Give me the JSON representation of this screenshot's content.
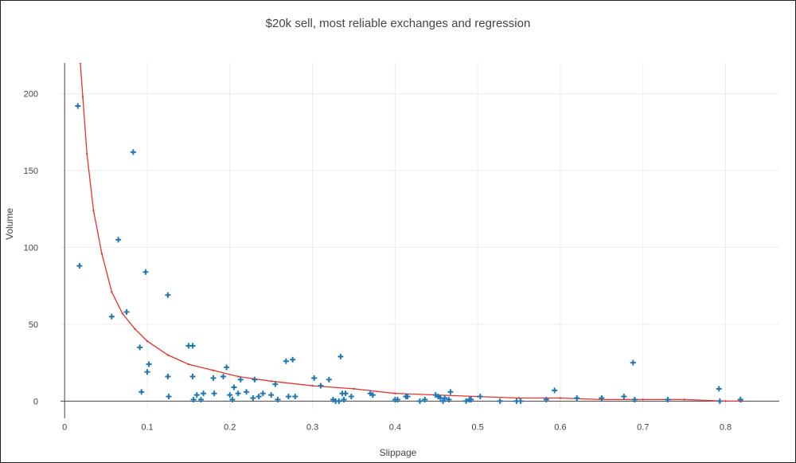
{
  "chart_data": {
    "type": "scatter",
    "title": "$20k sell, most reliable exchanges and regression",
    "xlabel": "Slippage",
    "ylabel": "Volume",
    "xlim": [
      -0.005,
      0.865
    ],
    "ylim": [
      -5,
      220
    ],
    "xticks": [
      "0",
      "0.1",
      "0.2",
      "0.3",
      "0.4",
      "0.5",
      "0.6",
      "0.7",
      "0.8"
    ],
    "xtick_values": [
      0,
      0.1,
      0.2,
      0.3,
      0.4,
      0.5,
      0.6,
      0.7,
      0.8
    ],
    "yticks": [
      "0",
      "50",
      "100",
      "150",
      "200"
    ],
    "ytick_values": [
      0,
      50,
      100,
      150,
      200
    ],
    "grid": true,
    "colors": {
      "points": "#1f77b4",
      "regression": "#e8322c",
      "grid": "#ececec",
      "axis": "#444444"
    },
    "series": [
      {
        "name": "exchanges",
        "kind": "markers",
        "marker": "cross",
        "x": [
          0.016,
          0.018,
          0.057,
          0.065,
          0.075,
          0.083,
          0.091,
          0.093,
          0.098,
          0.1,
          0.102,
          0.125,
          0.125,
          0.126,
          0.15,
          0.155,
          0.155,
          0.156,
          0.16,
          0.165,
          0.168,
          0.18,
          0.181,
          0.192,
          0.196,
          0.2,
          0.203,
          0.205,
          0.21,
          0.213,
          0.22,
          0.228,
          0.23,
          0.235,
          0.24,
          0.25,
          0.255,
          0.258,
          0.268,
          0.271,
          0.276,
          0.279,
          0.302,
          0.31,
          0.32,
          0.325,
          0.328,
          0.332,
          0.334,
          0.336,
          0.338,
          0.34,
          0.347,
          0.37,
          0.373,
          0.4,
          0.403,
          0.413,
          0.415,
          0.43,
          0.436,
          0.449,
          0.452,
          0.455,
          0.458,
          0.46,
          0.465,
          0.467,
          0.486,
          0.49,
          0.492,
          0.503,
          0.527,
          0.547,
          0.552,
          0.583,
          0.593,
          0.62,
          0.65,
          0.677,
          0.688,
          0.69,
          0.73,
          0.792,
          0.793,
          0.818
        ],
        "y": [
          192,
          88,
          55,
          105,
          58,
          162,
          35,
          6,
          84,
          19,
          24,
          69,
          16,
          3,
          36,
          36,
          16,
          1,
          4,
          1,
          5,
          15,
          5,
          16,
          22,
          4,
          1,
          9,
          5,
          14,
          6,
          2,
          14,
          3,
          5,
          4,
          11,
          1,
          26,
          3,
          27,
          3,
          15,
          10,
          14,
          1,
          0,
          0,
          29,
          5,
          1,
          5,
          3,
          5,
          4,
          1,
          1,
          3,
          3,
          0,
          1,
          4,
          3,
          2,
          0,
          2,
          1,
          6,
          0,
          1,
          1,
          3,
          0,
          0,
          0,
          1,
          7,
          2,
          2,
          3,
          25,
          1,
          1,
          8,
          0,
          1
        ]
      },
      {
        "name": "regression",
        "kind": "line",
        "x": [
          0.019,
          0.022,
          0.027,
          0.035,
          0.045,
          0.057,
          0.07,
          0.085,
          0.1,
          0.125,
          0.15,
          0.18,
          0.21,
          0.25,
          0.3,
          0.35,
          0.4,
          0.45,
          0.5,
          0.55,
          0.6,
          0.65,
          0.7,
          0.75,
          0.8,
          0.82
        ],
        "y": [
          220,
          198,
          161,
          124,
          96,
          71,
          57,
          47,
          39,
          30,
          24,
          20,
          16,
          13,
          10,
          8,
          5,
          4,
          3,
          2,
          2,
          1,
          1,
          1,
          0,
          0
        ]
      }
    ]
  }
}
